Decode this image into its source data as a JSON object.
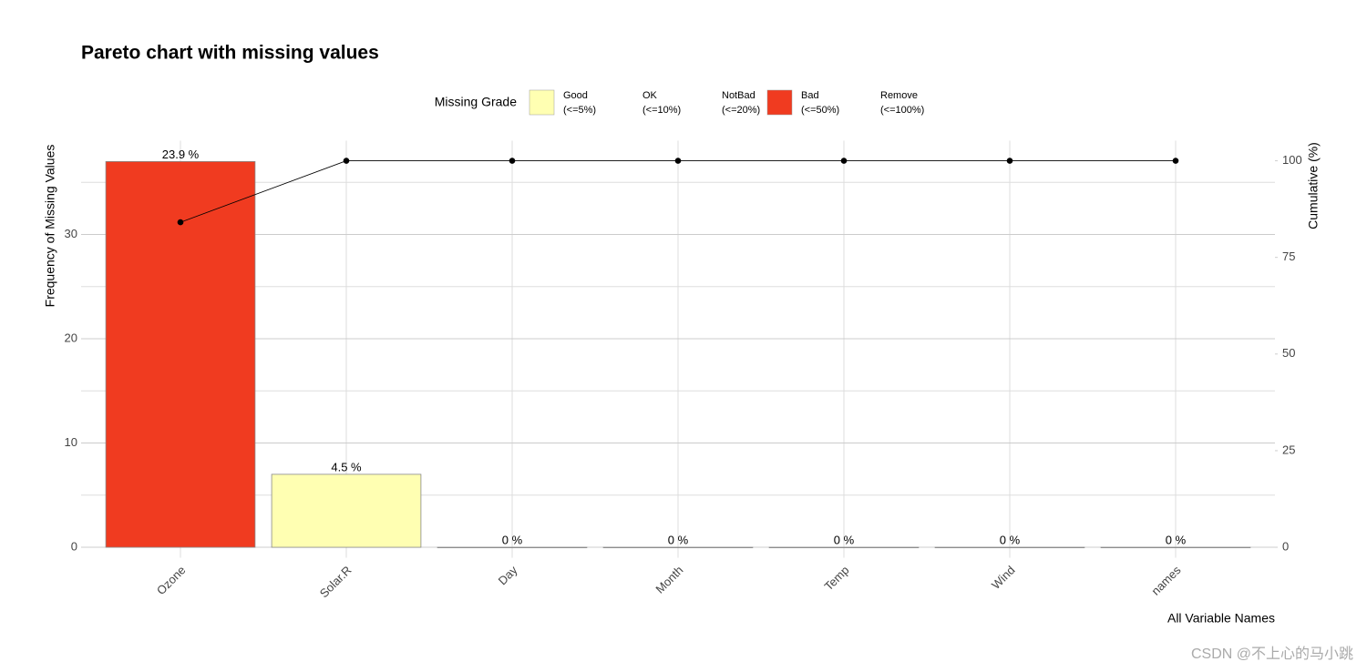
{
  "chart_data": {
    "type": "pareto",
    "title": "Pareto chart with missing values",
    "x_label": "All Variable Names",
    "y_label": "Frequency of Missing Values",
    "y2_label": "Cumulative (%)",
    "categories": [
      "Ozone",
      "Solar.R",
      "Day",
      "Month",
      "Temp",
      "Wind",
      "names"
    ],
    "series": [
      {
        "name": "Frequency of Missing Values",
        "values": [
          37,
          7,
          0,
          0,
          0,
          0,
          0
        ],
        "colors": [
          "#f03b20",
          "#ffffb2",
          "#ffffb2",
          "#ffffb2",
          "#ffffb2",
          "#ffffb2",
          "#ffffb2"
        ],
        "percent_labels": [
          "23.9 %",
          "4.5 %",
          "0 %",
          "0 %",
          "0 %",
          "0 %",
          "0 %"
        ]
      },
      {
        "name": "Cumulative (%)",
        "axis": "y2",
        "color": "#000000",
        "values": [
          84.1,
          100,
          100,
          100,
          100,
          100,
          100
        ]
      }
    ],
    "ylim": [
      -1,
      39
    ],
    "yticks": [
      0,
      10,
      20,
      30
    ],
    "y_minor_ticks": [
      5,
      15,
      25,
      35
    ],
    "y2lim": [
      -2.7,
      105.2
    ],
    "y2ticks": [
      0,
      25,
      50,
      75,
      100
    ],
    "grid": true,
    "legend": {
      "title": "Missing Grade",
      "position": "top",
      "items": [
        {
          "name": "Good",
          "range": "(<=5%)",
          "color": "#ffffb2"
        },
        {
          "name": "OK",
          "range": "(<=10%)",
          "color": null
        },
        {
          "name": "NotBad",
          "range": "(<=20%)",
          "color": null
        },
        {
          "name": "Bad",
          "range": "(<=50%)",
          "color": "#f03b20"
        },
        {
          "name": "Remove",
          "range": "(<=100%)",
          "color": null
        }
      ]
    },
    "watermark": "CSDN @不上心的马小跳"
  }
}
